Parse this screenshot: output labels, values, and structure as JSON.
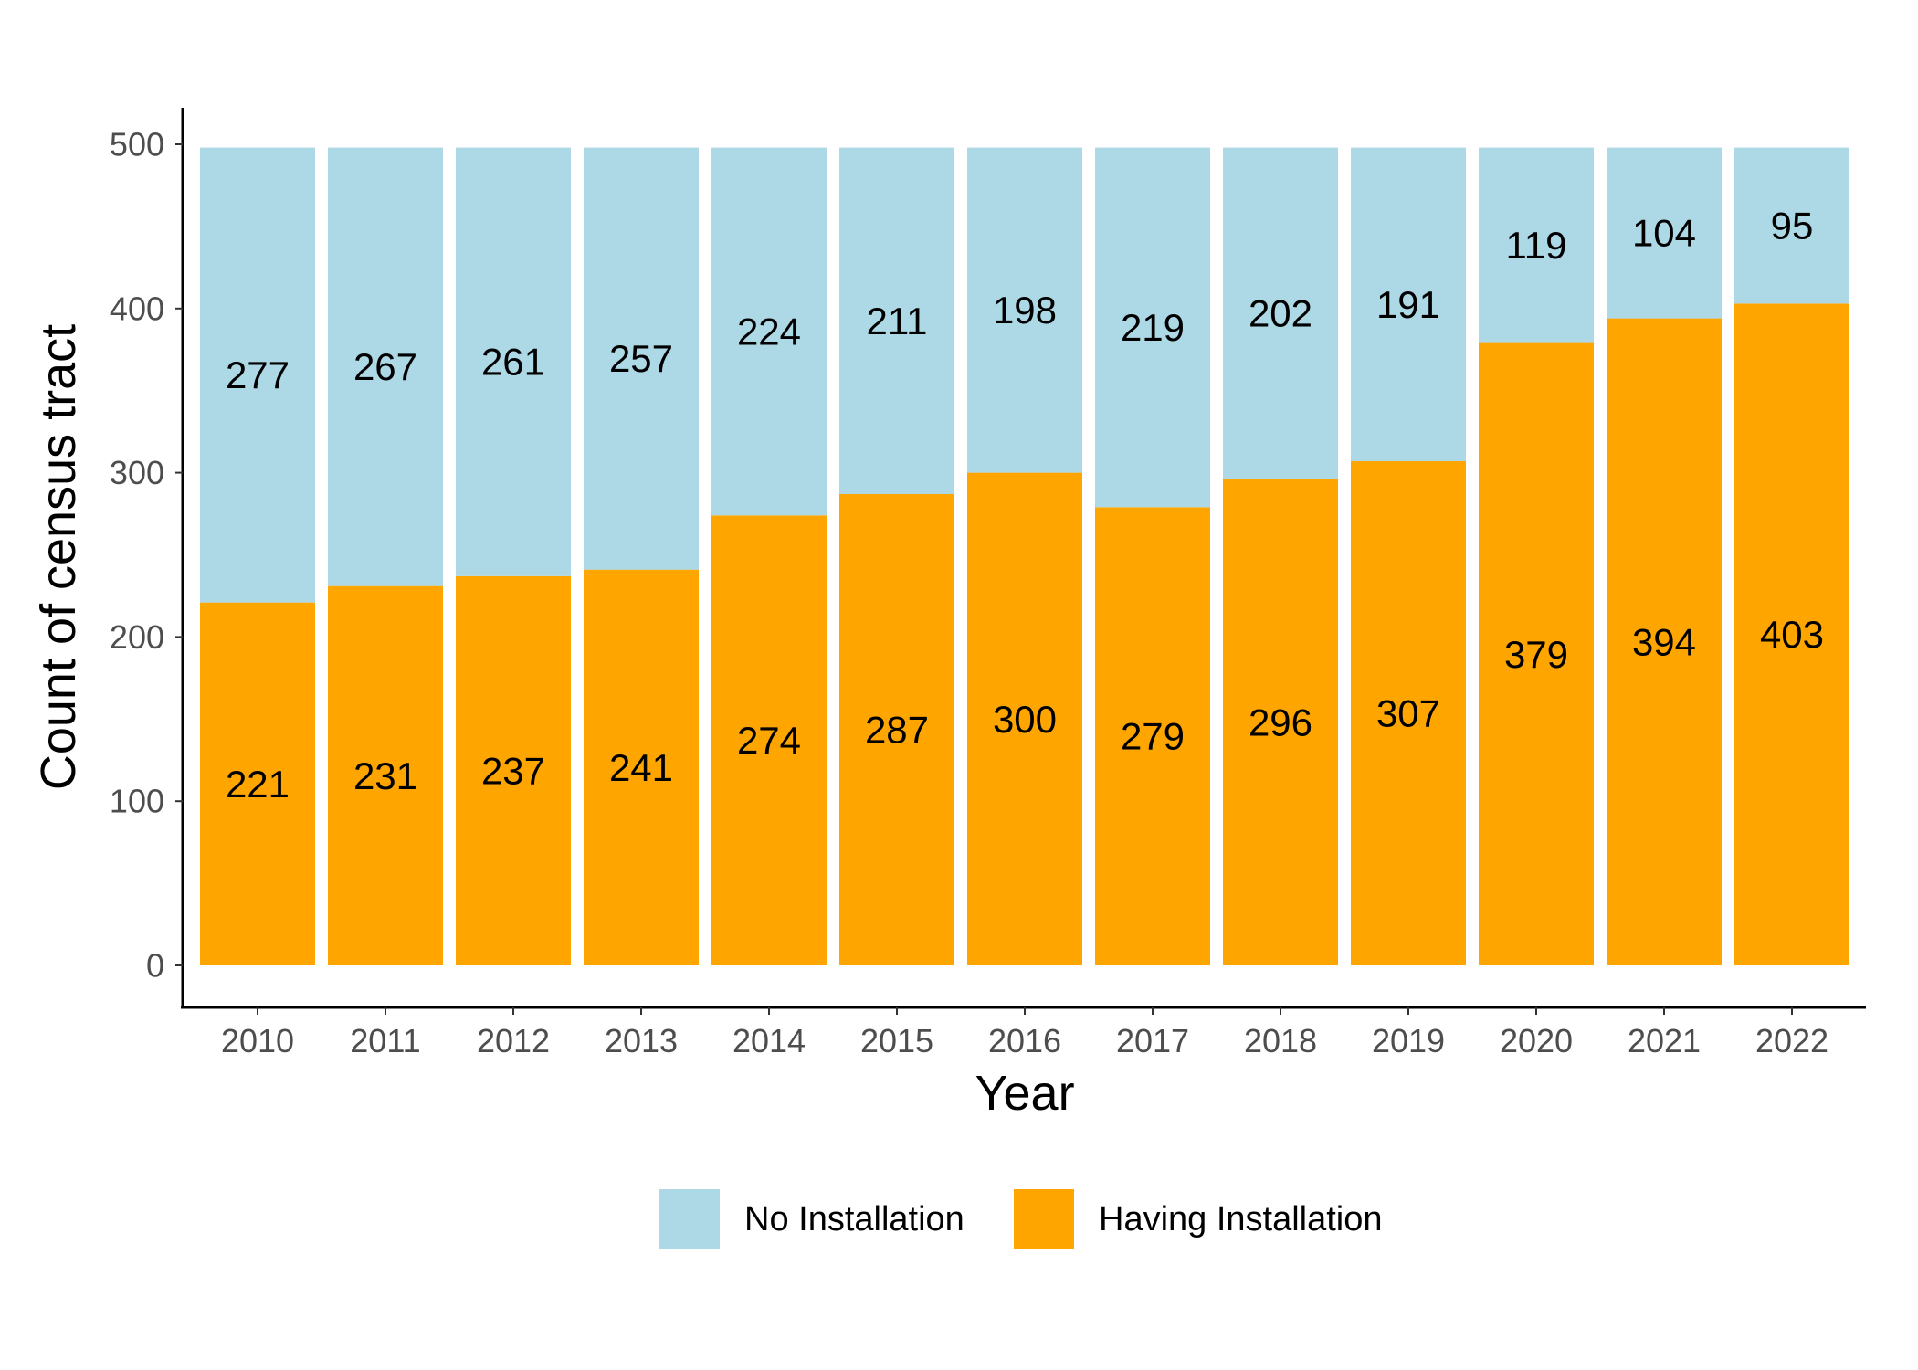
{
  "chart_data": {
    "type": "bar",
    "stacked": true,
    "categories": [
      "2010",
      "2011",
      "2012",
      "2013",
      "2014",
      "2015",
      "2016",
      "2017",
      "2018",
      "2019",
      "2020",
      "2021",
      "2022"
    ],
    "series": [
      {
        "name": "Having Installation",
        "color": "#FFA500",
        "values": [
          221,
          231,
          237,
          241,
          274,
          287,
          300,
          279,
          296,
          307,
          379,
          394,
          403
        ]
      },
      {
        "name": "No Installation",
        "color": "#ADD8E6",
        "values": [
          277,
          267,
          261,
          257,
          224,
          211,
          198,
          219,
          202,
          191,
          119,
          104,
          95
        ]
      }
    ],
    "xlabel": "Year",
    "ylabel": "Count of census tract",
    "ylim": [
      0,
      500
    ],
    "yticks": [
      0,
      100,
      200,
      300,
      400,
      500
    ],
    "grid": false,
    "legend": {
      "position": "bottom",
      "order": [
        "No Installation",
        "Having Installation"
      ]
    }
  }
}
